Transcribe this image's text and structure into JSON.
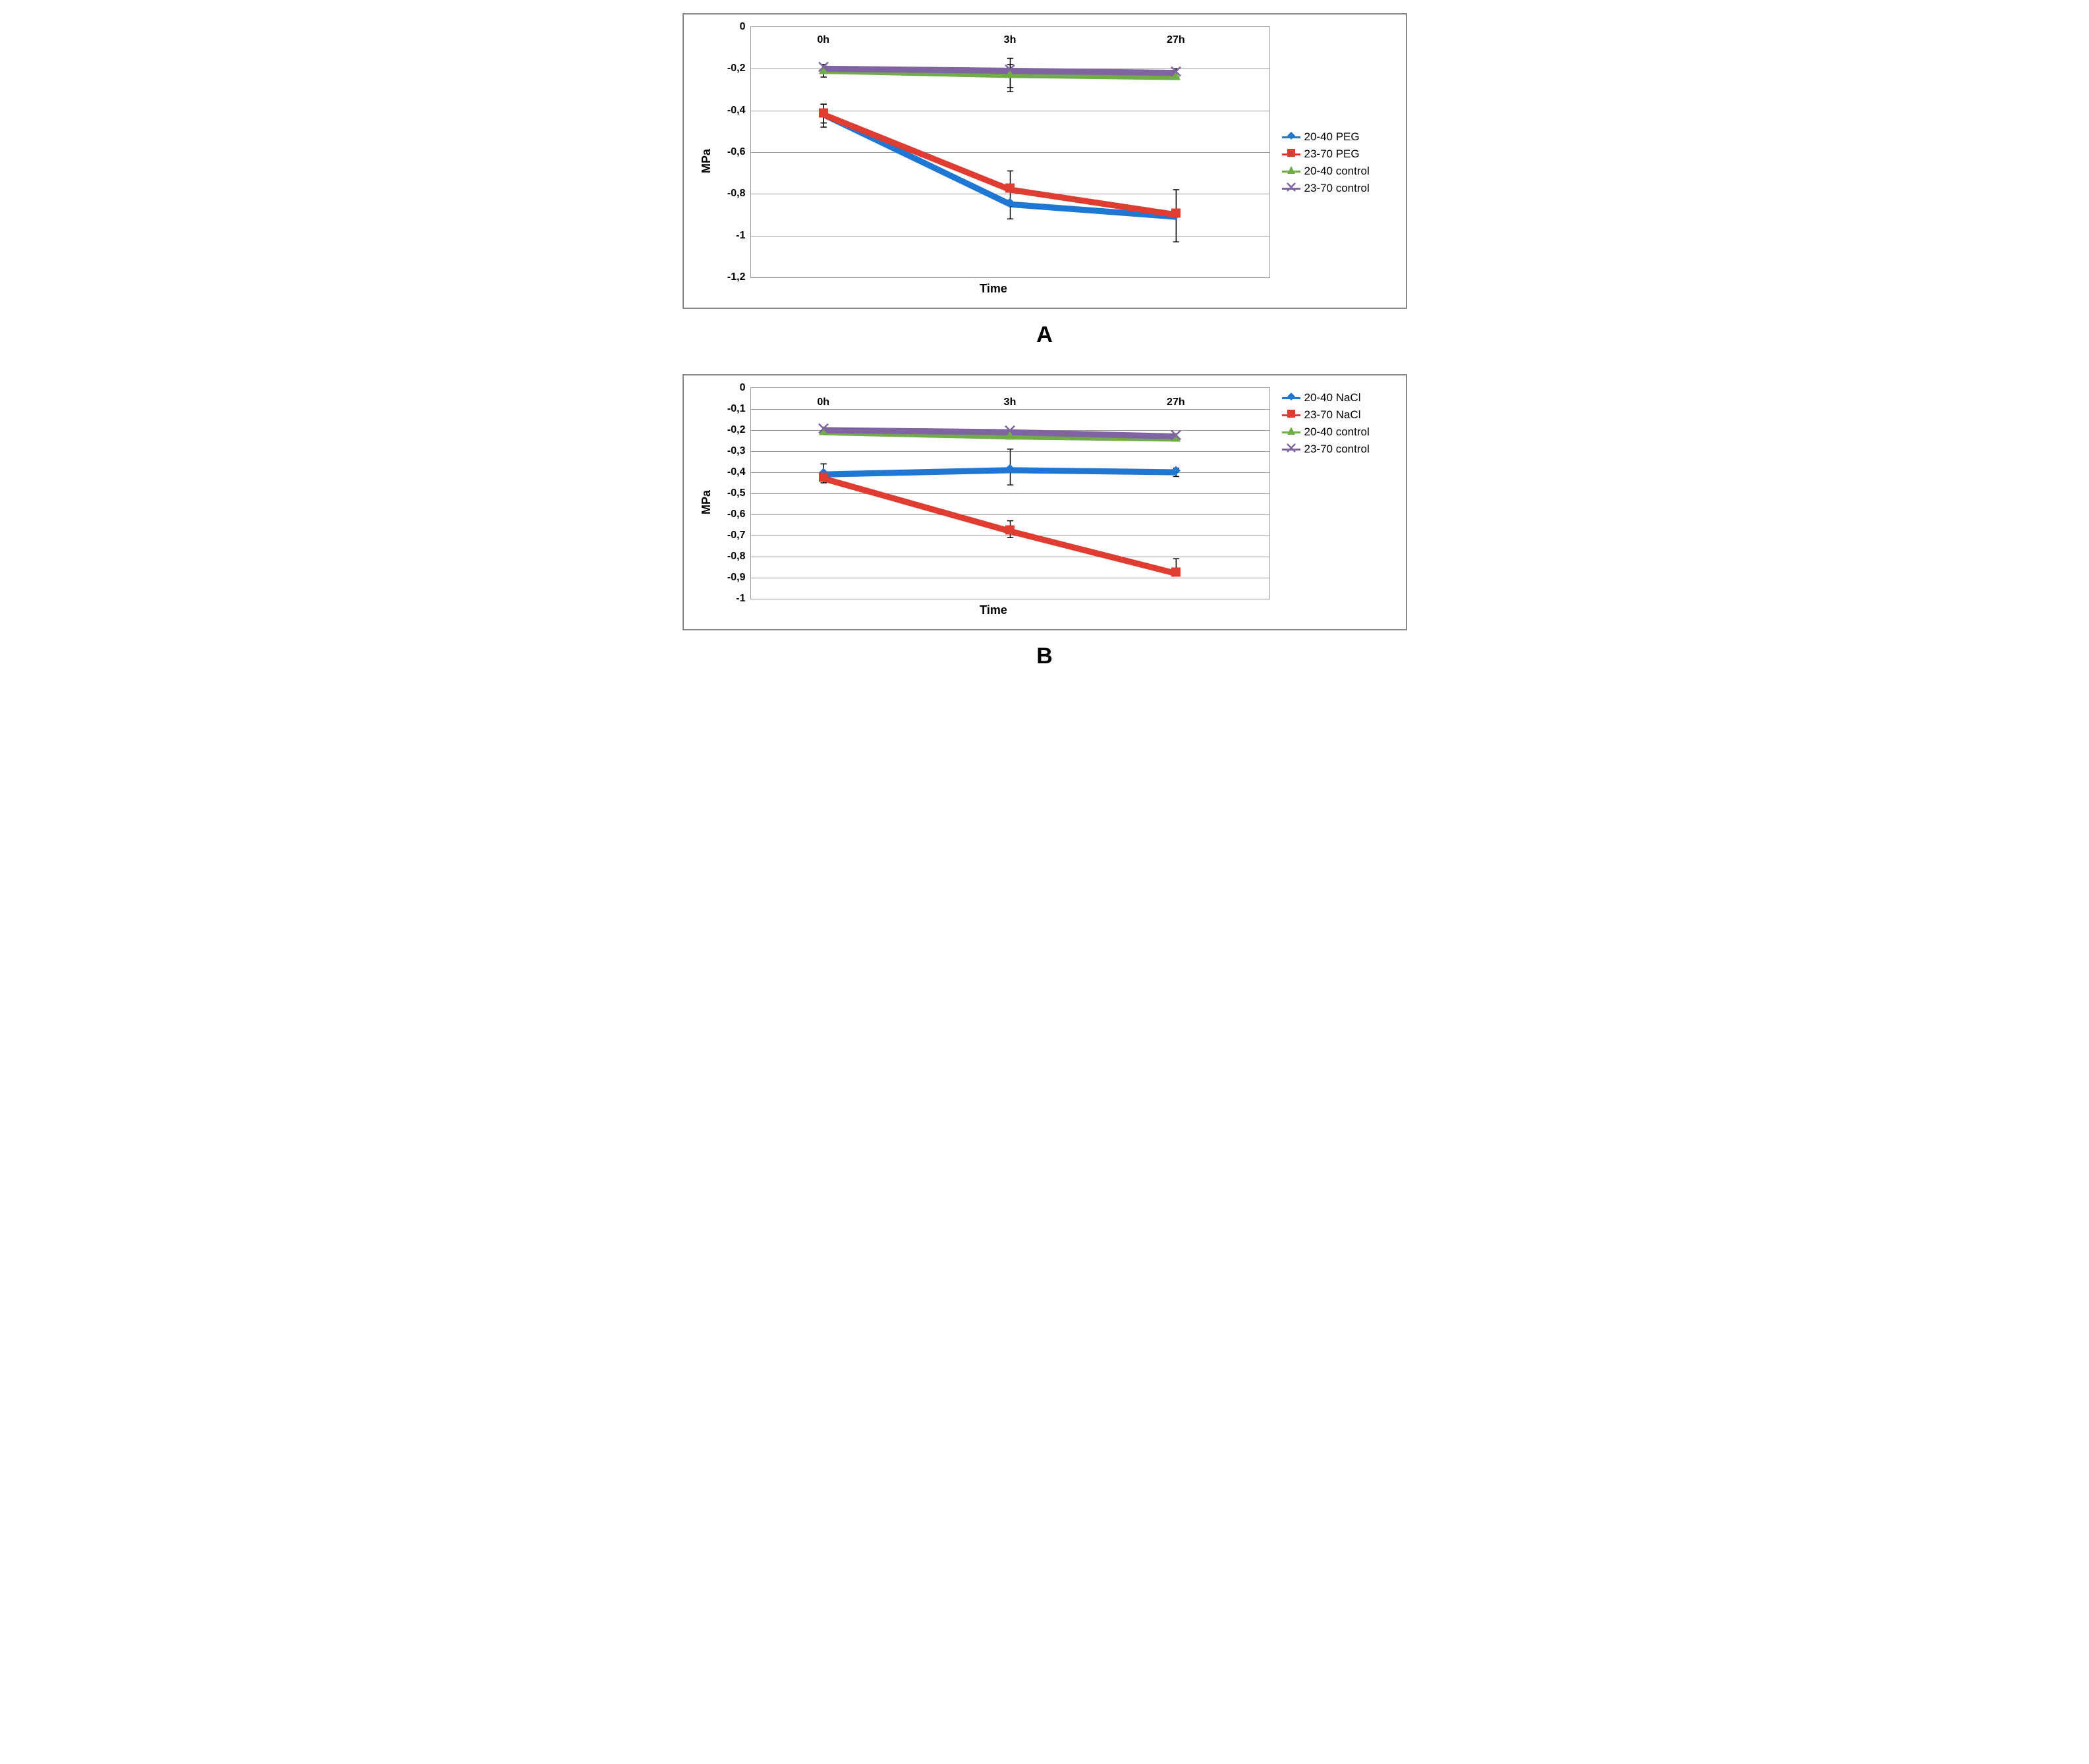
{
  "panels": [
    {
      "id": "A",
      "panel_label": "A",
      "ylabel": "MPa",
      "xlabel": "Time",
      "plot_height_class": "",
      "background_color": "#ffffff",
      "grid_color": "#999999",
      "line_width": 3.5,
      "marker_size": 7,
      "errorbar_width": 1.5,
      "errorbar_cap": 5,
      "label_fontsize": 18,
      "tick_fontsize": 16,
      "ylim": [
        -1.2,
        0
      ],
      "ytick_step": 0.2,
      "yticks": [
        "0",
        "-0,2",
        "-0,4",
        "-0,6",
        "-0,8",
        "-1",
        "-1,2"
      ],
      "ytick_vals": [
        0,
        -0.2,
        -0.4,
        -0.6,
        -0.8,
        -1.0,
        -1.2
      ],
      "x_categories": [
        "0h",
        "3h",
        "27h"
      ],
      "x_positions": [
        0.14,
        0.5,
        0.82
      ],
      "x_label_top_offset": 0.03,
      "legend_top_offset": 0.4,
      "series": [
        {
          "label": "20-40 PEG",
          "color": "#1f77d4",
          "marker": "diamond",
          "y": [
            -0.42,
            -0.85,
            -0.91
          ],
          "err": [
            [
              0.05,
              0.06
            ],
            [
              0.07,
              0.07
            ],
            [
              0.0,
              0.0
            ]
          ]
        },
        {
          "label": "23-70 PEG",
          "color": "#e03c31",
          "marker": "square",
          "y": [
            -0.42,
            -0.78,
            -0.9
          ],
          "err": [
            [
              0.05,
              0.04
            ],
            [
              0.09,
              0.0
            ],
            [
              0.12,
              0.13
            ]
          ]
        },
        {
          "label": "20-40 control",
          "color": "#70ad47",
          "marker": "triangle",
          "y": [
            -0.21,
            -0.23,
            -0.24
          ],
          "err": [
            [
              0.03,
              0.03
            ],
            [
              0.08,
              0.08
            ],
            [
              0.0,
              0.0
            ]
          ]
        },
        {
          "label": "23-70 control",
          "color": "#8064a2",
          "marker": "x",
          "y": [
            -0.2,
            -0.21,
            -0.22
          ],
          "err": [
            [
              0.0,
              0.0
            ],
            [
              0.03,
              0.08
            ],
            [
              0.02,
              0.02
            ]
          ]
        }
      ]
    },
    {
      "id": "B",
      "panel_label": "B",
      "ylabel": "MPa",
      "xlabel": "Time",
      "plot_height_class": "short",
      "background_color": "#ffffff",
      "grid_color": "#999999",
      "line_width": 3.5,
      "marker_size": 7,
      "errorbar_width": 1.5,
      "errorbar_cap": 5,
      "label_fontsize": 18,
      "tick_fontsize": 16,
      "ylim": [
        -1.0,
        0
      ],
      "ytick_step": 0.1,
      "yticks": [
        "0",
        "-0,1",
        "-0,2",
        "-0,3",
        "-0,4",
        "-0,5",
        "-0,6",
        "-0,7",
        "-0,8",
        "-0,9",
        "-1"
      ],
      "ytick_vals": [
        0,
        -0.1,
        -0.2,
        -0.3,
        -0.4,
        -0.5,
        -0.6,
        -0.7,
        -0.8,
        -0.9,
        -1.0
      ],
      "x_categories": [
        "0h",
        "3h",
        "27h"
      ],
      "x_positions": [
        0.14,
        0.5,
        0.82
      ],
      "x_label_top_offset": 0.04,
      "legend_top_offset": 0.0,
      "series": [
        {
          "label": "20-40 NaCl",
          "color": "#1f77d4",
          "marker": "diamond",
          "y": [
            -0.41,
            -0.39,
            -0.4
          ],
          "err": [
            [
              0.0,
              0.0
            ],
            [
              0.1,
              0.07
            ],
            [
              0.02,
              0.02
            ]
          ]
        },
        {
          "label": "23-70 NaCl",
          "color": "#e03c31",
          "marker": "square",
          "y": [
            -0.43,
            -0.68,
            -0.88
          ],
          "err": [
            [
              0.07,
              0.02
            ],
            [
              0.05,
              0.03
            ],
            [
              0.07,
              0.0
            ]
          ]
        },
        {
          "label": "20-40 control",
          "color": "#70ad47",
          "marker": "triangle",
          "y": [
            -0.21,
            -0.23,
            -0.24
          ],
          "err": [
            [
              0.0,
              0.0
            ],
            [
              0.0,
              0.0
            ],
            [
              0.0,
              0.0
            ]
          ]
        },
        {
          "label": "23-70 control",
          "color": "#8064a2",
          "marker": "x",
          "y": [
            -0.2,
            -0.21,
            -0.23
          ],
          "err": [
            [
              0.0,
              0.0
            ],
            [
              0.0,
              0.0
            ],
            [
              0.0,
              0.0
            ]
          ]
        }
      ]
    }
  ]
}
